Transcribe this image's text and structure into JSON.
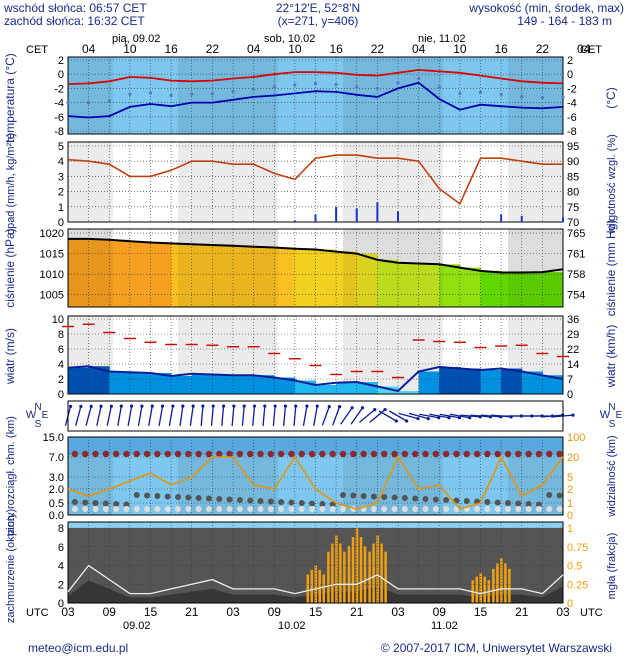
{
  "header": {
    "sunrise": "wschód słońca: 06:57 CET",
    "sunset": "zachód słońca: 16:32 CET",
    "coords": "22°12'E, 52°8'N",
    "grid": "(x=271, y=406)",
    "elevation_label": "wysokość (min, środek, max)",
    "elevation_values": "149 - 164 - 183 m"
  },
  "top_axis": {
    "tz": "CET",
    "days": [
      "pią, 09.02",
      "sob, 10.02",
      "nie, 11.02"
    ],
    "hours": [
      "04",
      "10",
      "16",
      "22",
      "04",
      "10",
      "16",
      "22",
      "04",
      "10",
      "16",
      "22",
      "04"
    ]
  },
  "bottom_axis": {
    "tz": "UTC",
    "days": [
      "09.02",
      "10.02",
      "11.02"
    ],
    "hours": [
      "03",
      "09",
      "15",
      "21",
      "03",
      "09",
      "15",
      "21",
      "03",
      "09",
      "15",
      "21",
      "03"
    ]
  },
  "footer": {
    "email": "meteo@icm.edu.pl",
    "copyright": "© 2007-2017 ICM, Uniwersytet Warszawski"
  },
  "colors": {
    "text": "#1a2a8a",
    "temperature": "#dd0000",
    "dewpoint": "#0000aa",
    "precip": "#1a33cc",
    "humidity": "#c04010",
    "pressure": "#000000",
    "gust": "#cc0000",
    "wind": "#0a1e99",
    "cloud_stroke": "#eeeeee",
    "fog_bar": "#f0a010",
    "visibility": "#e8940a"
  },
  "chart_data": [
    {
      "id": "temperature",
      "type": "line",
      "ylabel": "temperatura (°C)",
      "ylabel_right": "(°C)",
      "ylim": [
        -8,
        2
      ],
      "yticks": [
        -8,
        -6,
        -4,
        -2,
        0,
        2
      ],
      "x_hours": [
        0,
        3,
        6,
        9,
        12,
        15,
        18,
        21,
        24,
        27,
        30,
        33,
        36,
        39,
        42,
        45,
        48,
        51,
        54,
        57,
        60,
        63,
        66,
        69,
        72
      ],
      "series": [
        {
          "role": "temperature",
          "values": [
            -1.4,
            -1.3,
            -1.0,
            -0.4,
            -0.5,
            -0.9,
            -1.0,
            -0.9,
            -0.6,
            -0.4,
            0.0,
            0.3,
            0.3,
            0.2,
            -0.1,
            -0.2,
            0.2,
            0.6,
            0.4,
            0.2,
            -0.2,
            -0.6,
            -1.0,
            -1.2,
            -1.3
          ]
        },
        {
          "role": "dewpoint",
          "values": [
            -5.9,
            -6.1,
            -5.9,
            -4.6,
            -4.2,
            -4.5,
            -4.0,
            -4.0,
            -3.6,
            -3.2,
            -3.0,
            -2.7,
            -2.4,
            -2.5,
            -2.9,
            -3.2,
            -2.0,
            -1.2,
            -3.5,
            -5.0,
            -4.3,
            -4.5,
            -4.7,
            -4.8,
            -4.6
          ]
        }
      ]
    },
    {
      "id": "precip_humidity",
      "type": "bar+line",
      "ylabel": "opad (mm/h, kg/m²h)",
      "ylabel_right": "wilgotność wzgl. (%)",
      "ylim": [
        0,
        5
      ],
      "ylim_right": [
        70,
        95
      ],
      "yticks": [
        0,
        1,
        2,
        3,
        4,
        5
      ],
      "yticks_right": [
        70,
        75,
        80,
        85,
        90,
        95
      ],
      "x_hours": [
        0,
        3,
        6,
        9,
        12,
        15,
        18,
        21,
        24,
        27,
        30,
        33,
        36,
        39,
        42,
        45,
        48,
        51,
        54,
        57,
        60,
        63,
        66,
        69,
        72
      ],
      "humidity": [
        90.5,
        90,
        89,
        85,
        85,
        87,
        90,
        90,
        89,
        89,
        86,
        84,
        91,
        92,
        92,
        91,
        91,
        90,
        81,
        76,
        91,
        91,
        90,
        89,
        89
      ],
      "precip": [
        0,
        0,
        0,
        0,
        0,
        0,
        0,
        0,
        0,
        0,
        0,
        0.1,
        0.5,
        1.0,
        0.9,
        1.3,
        0.7,
        0,
        0,
        0,
        0,
        0.5,
        0.4,
        0,
        0.3
      ]
    },
    {
      "id": "pressure",
      "type": "line",
      "ylabel": "ciśnienie (hPa)",
      "ylabel_right": "ciśnienie (mm Hg)",
      "ylim": [
        1002,
        1021
      ],
      "yticks": [
        1005,
        1010,
        1015,
        1020
      ],
      "yticks_right": [
        "754",
        "758",
        "761",
        "765"
      ],
      "x_hours": [
        0,
        3,
        6,
        9,
        12,
        15,
        18,
        21,
        24,
        27,
        30,
        33,
        36,
        39,
        42,
        45,
        48,
        51,
        54,
        57,
        60,
        63,
        66,
        69,
        72
      ],
      "values": [
        1018.6,
        1018.6,
        1018.4,
        1018.0,
        1017.7,
        1017.5,
        1017.3,
        1017.1,
        1016.9,
        1016.7,
        1016.5,
        1016.2,
        1016.0,
        1015.5,
        1015.0,
        1013.5,
        1012.8,
        1012.6,
        1012.4,
        1011.6,
        1010.8,
        1010.4,
        1010.4,
        1010.5,
        1011.2
      ]
    },
    {
      "id": "wind",
      "type": "line",
      "ylabel": "wiatr (m/s)",
      "ylabel_right": "wiatr (km/h)",
      "ylim": [
        0,
        10
      ],
      "yticks": [
        0,
        2,
        4,
        6,
        8,
        10
      ],
      "yticks_right": [
        "0",
        "7",
        "14",
        "22",
        "29",
        "36"
      ],
      "x_hours": [
        0,
        3,
        6,
        9,
        12,
        15,
        18,
        21,
        24,
        27,
        30,
        33,
        36,
        39,
        42,
        45,
        48,
        51,
        54,
        57,
        60,
        63,
        66,
        69,
        72
      ],
      "speed": [
        3.5,
        3.7,
        3.0,
        2.9,
        2.8,
        2.4,
        2.7,
        2.6,
        2.5,
        2.5,
        2.2,
        1.8,
        1.2,
        1.5,
        1.6,
        1.0,
        0.4,
        3.0,
        3.6,
        3.4,
        3.2,
        3.4,
        3.0,
        2.5,
        2.0
      ],
      "gust": [
        9.0,
        9.3,
        8.2,
        7.4,
        6.9,
        6.6,
        6.6,
        6.5,
        6.3,
        6.3,
        5.4,
        4.7,
        3.8,
        2.6,
        3.0,
        3.0,
        2.2,
        7.2,
        7.0,
        6.9,
        6.2,
        6.4,
        6.5,
        5.4,
        5.0
      ]
    },
    {
      "id": "wind_direction",
      "type": "arrows",
      "ylabel_left": [
        "W",
        "N",
        "S",
        "E"
      ],
      "ylabel_right": [
        "W",
        "N",
        "S",
        "E"
      ],
      "x_hours": [
        0,
        3,
        6,
        9,
        12,
        15,
        18,
        21,
        24,
        27,
        30,
        33,
        36,
        39,
        42,
        45,
        48,
        51,
        54,
        57,
        60,
        63,
        66,
        69,
        72
      ],
      "direction_deg": [
        195,
        195,
        192,
        190,
        190,
        190,
        188,
        185,
        185,
        185,
        185,
        185,
        190,
        200,
        215,
        230,
        300,
        285,
        280,
        280,
        275,
        275,
        270,
        270,
        265
      ]
    },
    {
      "id": "visibility",
      "type": "scatter+line",
      "ylabel": "pion. rozciągł. chm. (km)",
      "ylabel_right": "widzialność (km)",
      "yticks": [
        "0.0",
        "0.5",
        "2.0",
        "3.0",
        "7.0",
        "15.0"
      ],
      "yticks_right": [
        "0",
        "1",
        "2",
        "5",
        "20",
        "100"
      ],
      "x_hours": [
        0,
        3,
        6,
        9,
        12,
        15,
        18,
        21,
        24,
        27,
        30,
        33,
        36,
        39,
        42,
        45,
        48,
        51,
        54,
        57,
        60,
        63,
        66,
        69,
        72
      ],
      "visibility_km": [
        2,
        1.5,
        2,
        4,
        8,
        3,
        5,
        20,
        20,
        3,
        2,
        20,
        2,
        1,
        0.5,
        1,
        20,
        2,
        3,
        0.5,
        1,
        20,
        1.5,
        3,
        20
      ]
    },
    {
      "id": "clouds_fog",
      "type": "area+bar",
      "ylabel": "zachmurzenie (oktanty)",
      "ylabel_right": "mgła (frakcja)",
      "ylim": [
        0,
        8
      ],
      "yticks": [
        0,
        2,
        4,
        6,
        8
      ],
      "yticks_right": [
        "0",
        "0.25",
        "0.5",
        "0.75",
        "1"
      ],
      "x_hours": [
        0,
        3,
        6,
        9,
        12,
        15,
        18,
        21,
        24,
        27,
        30,
        33,
        36,
        39,
        42,
        45,
        48,
        51,
        54,
        57,
        60,
        63,
        66,
        69,
        72
      ],
      "total_cloud": [
        1.2,
        4.0,
        2.5,
        1.0,
        1.0,
        1.5,
        2.0,
        2.5,
        1.5,
        1.5,
        1.5,
        1.0,
        1.5,
        2.0,
        2.0,
        3.0,
        1.5,
        1.5,
        1.5,
        1.5,
        1.0,
        1.5,
        1.5,
        1.0,
        3.0
      ],
      "fog_fraction": [
        0,
        0,
        0,
        0,
        0,
        0,
        0,
        0,
        0,
        0,
        0,
        0,
        0.5,
        0.9,
        1.0,
        0.9,
        0,
        0,
        0,
        0,
        0.4,
        0.6,
        0,
        0,
        0
      ]
    }
  ]
}
